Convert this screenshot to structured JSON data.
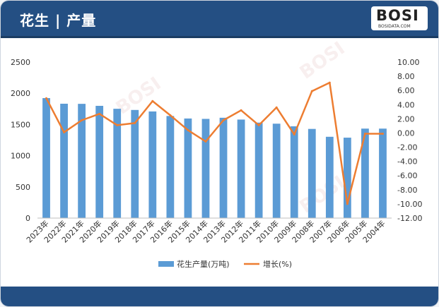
{
  "header": {
    "title": "花生 | 产量"
  },
  "logo": {
    "text": "BOSI",
    "subtext": "BOSIDATA.COM"
  },
  "colors": {
    "header_bg": "#244f83",
    "bar": "#5b9bd5",
    "line": "#ed7d31"
  },
  "chart_data": {
    "type": "bar",
    "categories": [
      "2023年",
      "2022年",
      "2021年",
      "2020年",
      "2019年",
      "2018年",
      "2017年",
      "2016年",
      "2015年",
      "2014年",
      "2013年",
      "2012年",
      "2011年",
      "2010年",
      "2009年",
      "2008年",
      "2007年",
      "2006年",
      "2005年",
      "2004年"
    ],
    "series": [
      {
        "name": "花生产量(万吨)",
        "type": "bar",
        "axis": "left",
        "values": [
          1923,
          1833,
          1831,
          1799,
          1752,
          1733,
          1709,
          1636,
          1596,
          1590,
          1608,
          1579,
          1530,
          1513,
          1471,
          1429,
          1303,
          1289,
          1434,
          1434
        ]
      },
      {
        "name": "增长(%)",
        "type": "line",
        "axis": "right",
        "values": [
          4.9,
          0.1,
          1.8,
          2.7,
          1.1,
          1.4,
          4.5,
          2.5,
          0.4,
          -1.2,
          1.8,
          3.2,
          1.1,
          3.6,
          -0.2,
          5.9,
          7.1,
          -10.0,
          -0.1,
          -0.1
        ]
      }
    ],
    "y_left": {
      "ylim": [
        0,
        2500
      ],
      "ticks": [
        "0",
        "500",
        "1000",
        "1500",
        "2000",
        "2500"
      ]
    },
    "y_right": {
      "ylim": [
        -12,
        10
      ],
      "ticks": [
        "10.00",
        "8.00",
        "6.00",
        "4.00",
        "2.00",
        "0.00",
        "-2.00",
        "-4.00",
        "-6.00",
        "-8.00",
        "-10.00",
        "-12.00"
      ]
    },
    "legend_position": "bottom-center",
    "grid": false
  },
  "watermark": {
    "text": "博思数据",
    "text2": "BosiData Research"
  }
}
